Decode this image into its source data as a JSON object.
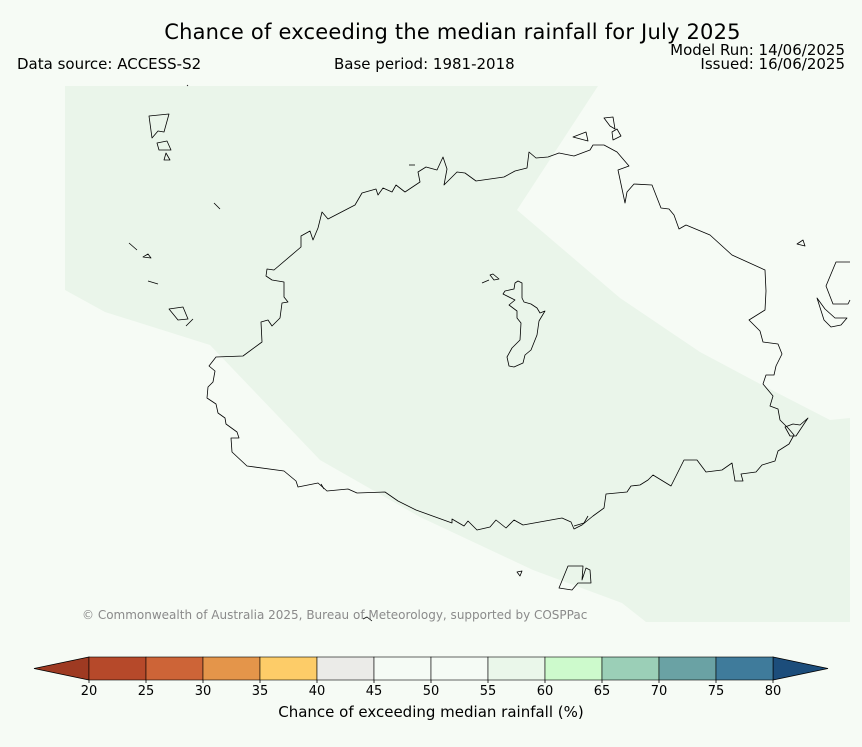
{
  "title": "Chance of exceeding the median rainfall for July 2025",
  "data_source": "Data source: ACCESS-S2",
  "base_period": "Base period: 1981-2018",
  "model_run": "Model Run: 14/06/2025",
  "issued": "Issued: 16/06/2025",
  "copyright": "© Commonwealth of Australia 2025, Bureau of Meteorology, supported by COSPPac",
  "colorbar": {
    "label": "Chance of exceeding median rainfall (%)",
    "ticks": [
      "20",
      "25",
      "30",
      "35",
      "40",
      "45",
      "50",
      "55",
      "60",
      "65",
      "70",
      "75",
      "80"
    ],
    "colors": [
      "#b6492a",
      "#cd6437",
      "#e4954a",
      "#fdcc68",
      "#ebebe8",
      "#f5fbf5",
      "#f5fbf5",
      "#eaf7ea",
      "#cdfacc",
      "#9bcfb7",
      "#6aa2a4",
      "#3f7b9b"
    ],
    "low_color": "#9e3a22",
    "high_color": "#1c4d7b"
  },
  "map": {
    "background_color": "#f6fbf5",
    "shade_color": "#eaf5ea",
    "coast_color": "#000000"
  }
}
